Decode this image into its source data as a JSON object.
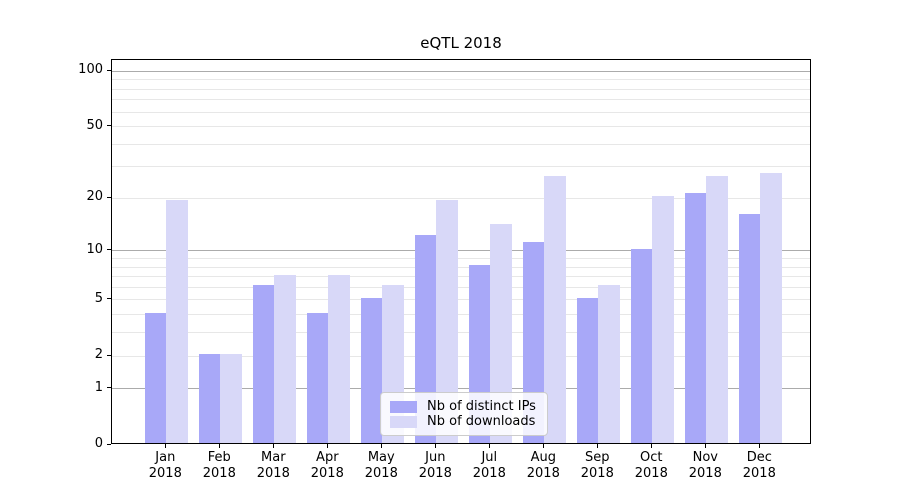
{
  "chart_data": {
    "type": "bar",
    "title": "eQTL 2018",
    "categories": [
      "Jan 2018",
      "Feb 2018",
      "Mar 2018",
      "Apr 2018",
      "May 2018",
      "Jun 2018",
      "Jul 2018",
      "Aug 2018",
      "Sep 2018",
      "Oct 2018",
      "Nov 2018",
      "Dec 2018"
    ],
    "series": [
      {
        "name": "Nb of distinct IPs",
        "color": "#a8a8f8",
        "values": [
          4,
          2,
          6,
          4,
          5,
          12,
          8,
          11,
          5,
          10,
          21,
          16
        ]
      },
      {
        "name": "Nb of downloads",
        "color": "#d8d8f8",
        "values": [
          19,
          2,
          7,
          7,
          6,
          19,
          14,
          26,
          6,
          20,
          26,
          27
        ]
      }
    ],
    "xlabel": "",
    "ylabel": "",
    "yscale": "log1p",
    "ylim": [
      0,
      115
    ],
    "ytick_labels": [
      "0",
      "1",
      "2",
      "5",
      "10",
      "20",
      "50",
      "100"
    ],
    "grid_major_values": [
      1,
      10,
      100
    ],
    "grid_minor_values": [
      2,
      3,
      4,
      5,
      6,
      7,
      8,
      9,
      20,
      30,
      40,
      50,
      60,
      70,
      80,
      90
    ],
    "grid_major_color": "#ababab",
    "grid_minor_color": "#e7e7e7",
    "grid": true,
    "legend_position": "lower-center"
  }
}
